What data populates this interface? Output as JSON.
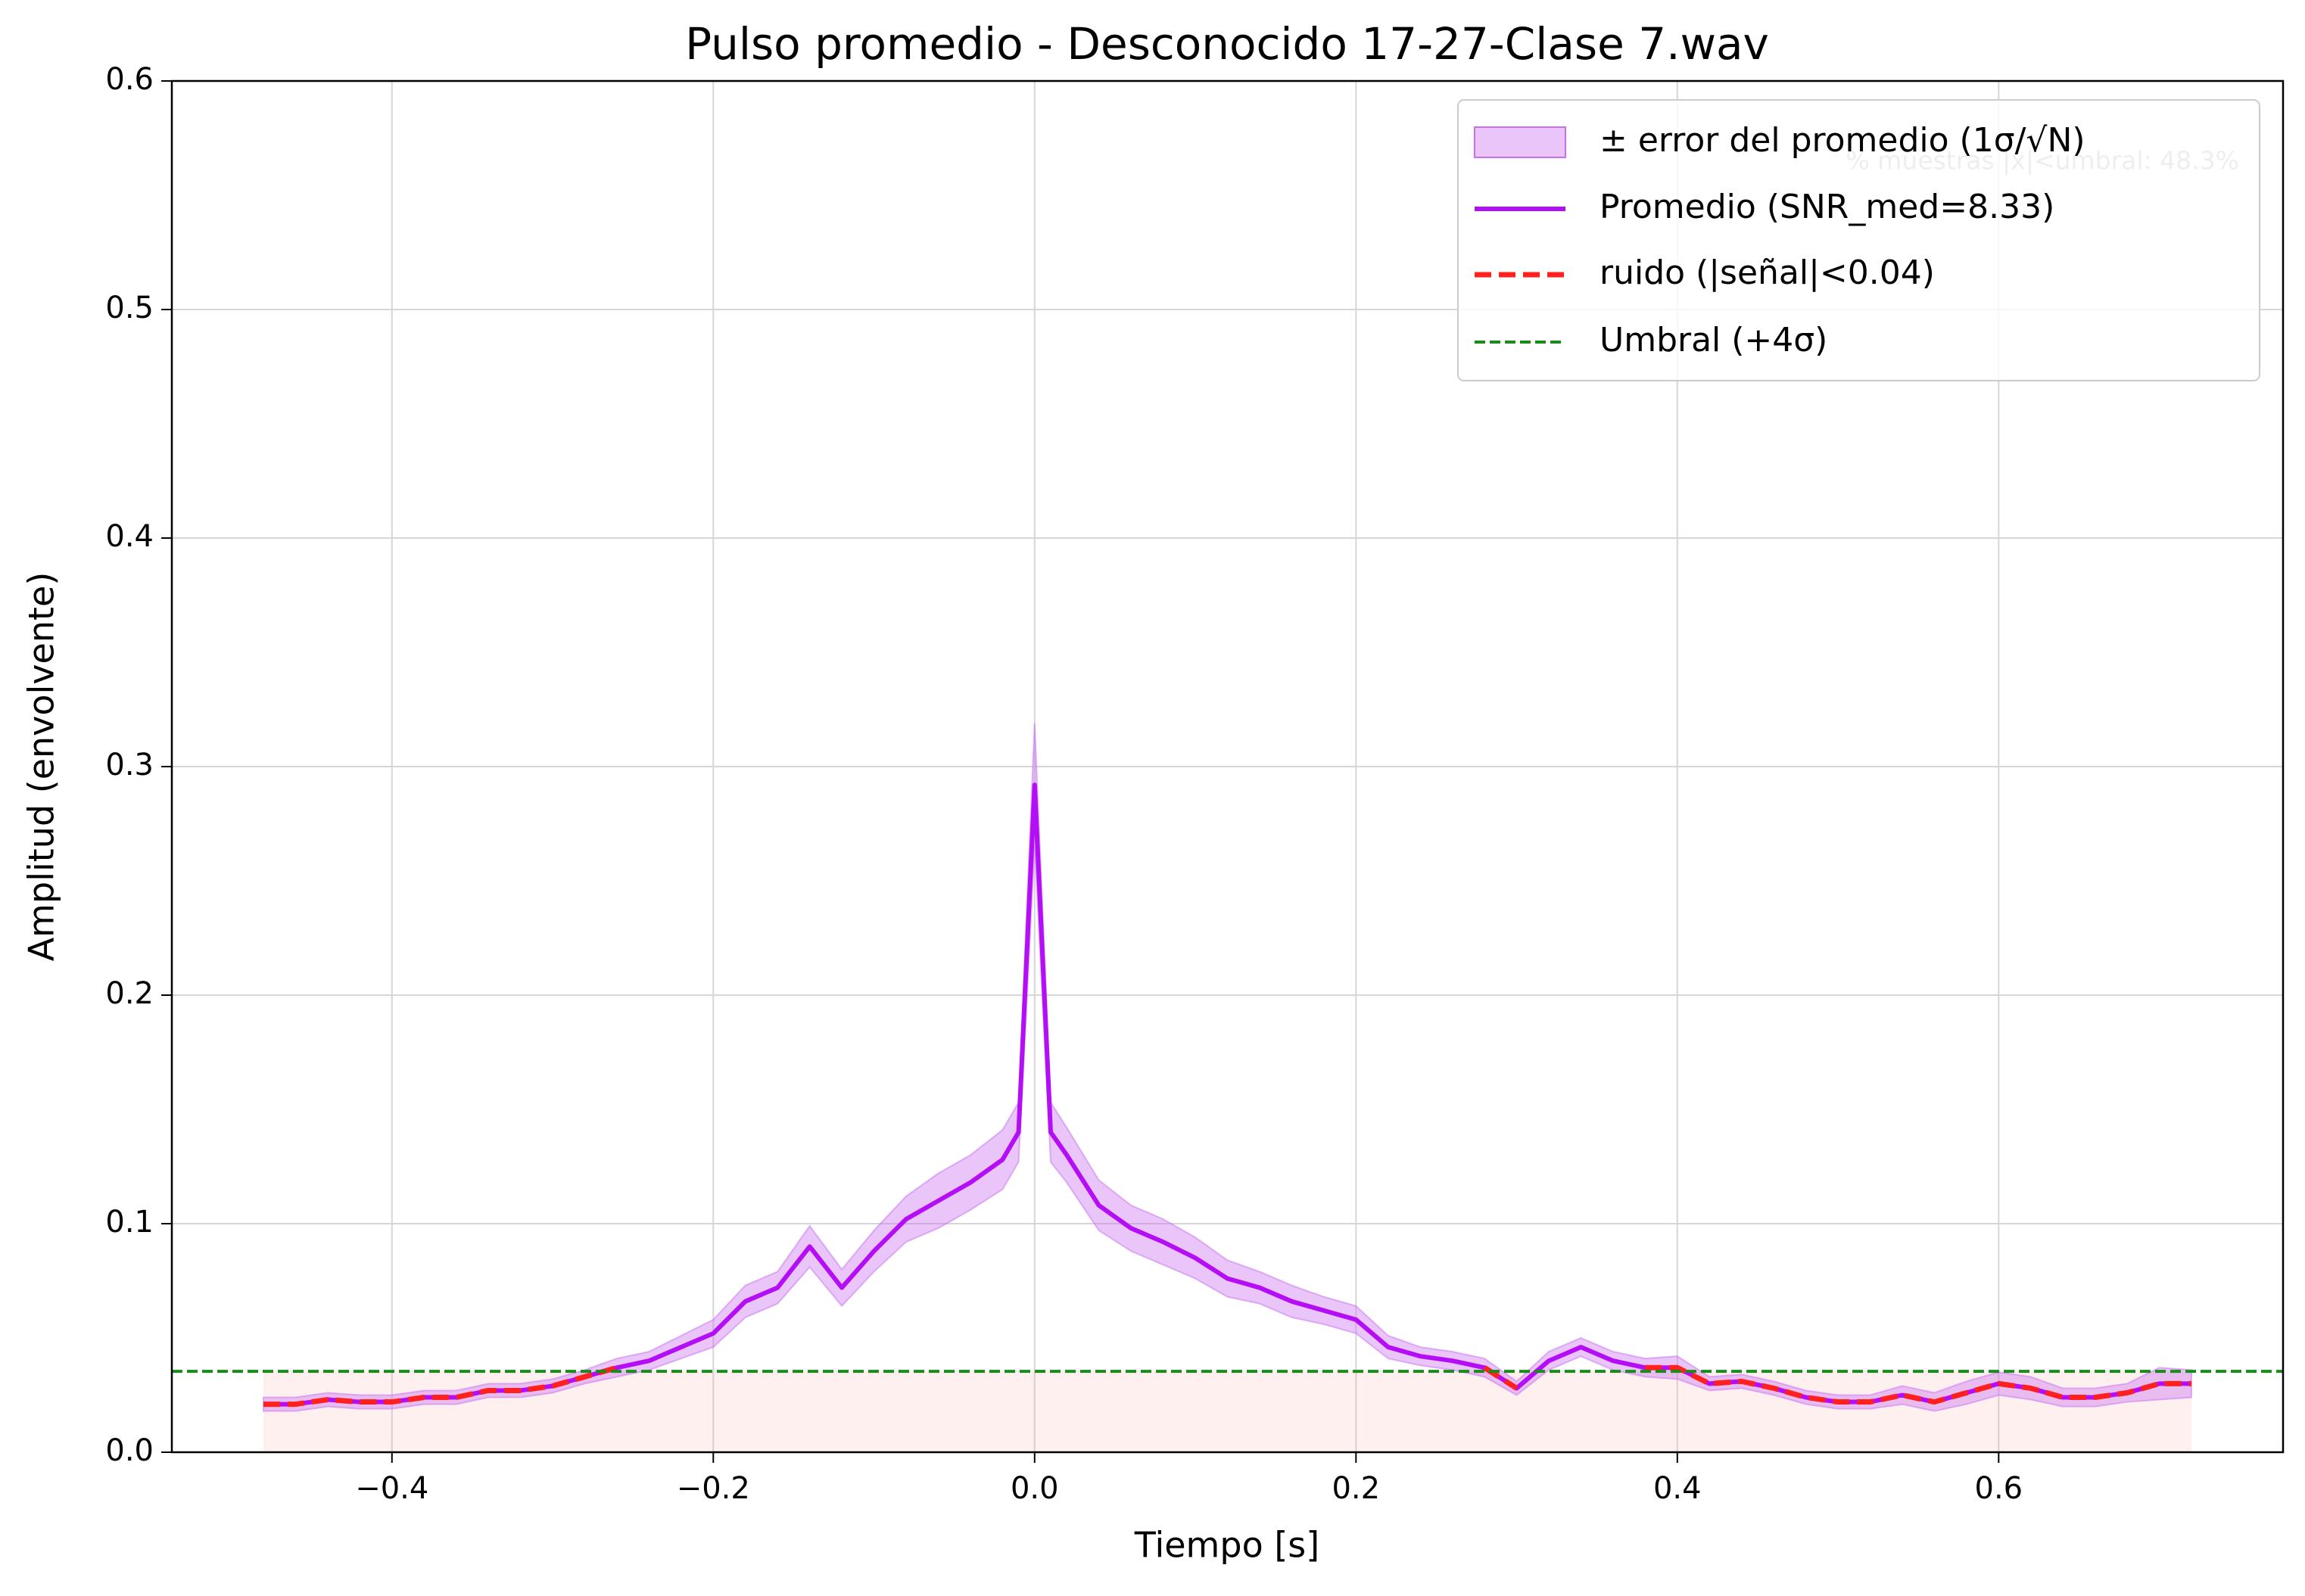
{
  "chart_data": {
    "type": "line",
    "title": "Pulso promedio - Desconocido 17-27-Clase 7.wav",
    "xlabel": "Tiempo [s]",
    "ylabel": "Amplitud (envolvente)",
    "annotation": "% muestras |x|<umbral: 48.3%",
    "xlim": [
      -0.537,
      0.777
    ],
    "ylim": [
      0,
      0.6
    ],
    "xticks": [
      {
        "value": -0.4,
        "label": "−0.4"
      },
      {
        "value": -0.2,
        "label": "−0.2"
      },
      {
        "value": 0,
        "label": "0.0"
      },
      0.2,
      0.4,
      0.6
    ],
    "yticks": [
      {
        "value": 0,
        "label": "0.0"
      },
      0.1,
      0.2,
      0.3,
      0.4,
      0.5,
      0.6
    ],
    "grid": true,
    "legend": "upper right",
    "x": [
      -0.48,
      -0.46,
      -0.44,
      -0.42,
      -0.4,
      -0.38,
      -0.36,
      -0.34,
      -0.32,
      -0.3,
      -0.28,
      -0.26,
      -0.24,
      -0.22,
      -0.2,
      -0.18,
      -0.16,
      -0.14,
      -0.12,
      -0.1,
      -0.08,
      -0.06,
      -0.04,
      -0.02,
      -0.01,
      0,
      0.01,
      0.02,
      0.04,
      0.06,
      0.08,
      0.1,
      0.12,
      0.14,
      0.16,
      0.18,
      0.2,
      0.22,
      0.24,
      0.26,
      0.28,
      0.3,
      0.32,
      0.34,
      0.36,
      0.38,
      0.4,
      0.42,
      0.44,
      0.46,
      0.48,
      0.5,
      0.52,
      0.54,
      0.56,
      0.58,
      0.6,
      0.62,
      0.64,
      0.66,
      0.68,
      0.7,
      0.72
    ],
    "band": {
      "name": "± error del promedio (1σ/√N)",
      "color": "#c86ff0",
      "errors": [
        0.003,
        0.003,
        0.003,
        0.003,
        0.003,
        0.003,
        0.003,
        0.003,
        0.003,
        0.003,
        0.003,
        0.004,
        0.004,
        0.005,
        0.006,
        0.007,
        0.007,
        0.009,
        0.008,
        0.009,
        0.01,
        0.012,
        0.012,
        0.013,
        0.013,
        0.027,
        0.013,
        0.012,
        0.011,
        0.01,
        0.01,
        0.009,
        0.008,
        0.007,
        0.007,
        0.006,
        0.006,
        0.005,
        0.004,
        0.004,
        0.004,
        0.003,
        0.004,
        0.004,
        0.004,
        0.004,
        0.005,
        0.003,
        0.003,
        0.003,
        0.003,
        0.003,
        0.003,
        0.004,
        0.004,
        0.005,
        0.005,
        0.005,
        0.004,
        0.004,
        0.004,
        0.007,
        0.006
      ]
    },
    "series": [
      {
        "name": "Promedio (SNR_med=8.33)",
        "color": "#b30ef5",
        "dashed": false,
        "values": [
          0.021,
          0.021,
          0.023,
          0.022,
          0.022,
          0.024,
          0.024,
          0.027,
          0.027,
          0.029,
          0.033,
          0.037,
          0.04,
          0.046,
          0.052,
          0.066,
          0.072,
          0.09,
          0.072,
          0.088,
          0.102,
          0.11,
          0.118,
          0.128,
          0.14,
          0.292,
          0.14,
          0.13,
          0.108,
          0.098,
          0.092,
          0.085,
          0.076,
          0.072,
          0.066,
          0.062,
          0.058,
          0.046,
          0.042,
          0.04,
          0.037,
          0.028,
          0.04,
          0.046,
          0.04,
          0.037,
          0.037,
          0.03,
          0.031,
          0.028,
          0.024,
          0.022,
          0.022,
          0.025,
          0.022,
          0.026,
          0.03,
          0.028,
          0.024,
          0.024,
          0.026,
          0.03,
          0.03
        ]
      },
      {
        "name": "ruido (|señal|<0.04)",
        "color": "#ff2020",
        "dashed": true,
        "values": [
          0.021,
          0.021,
          0.023,
          0.022,
          0.022,
          0.024,
          0.024,
          0.027,
          0.027,
          0.029,
          0.033,
          0.037,
          null,
          null,
          null,
          null,
          null,
          null,
          null,
          null,
          null,
          null,
          null,
          null,
          null,
          null,
          null,
          null,
          null,
          null,
          null,
          null,
          null,
          null,
          null,
          null,
          null,
          null,
          null,
          null,
          0.037,
          0.028,
          null,
          null,
          null,
          0.037,
          0.037,
          0.03,
          0.031,
          0.028,
          0.024,
          0.022,
          0.022,
          0.025,
          0.022,
          0.026,
          0.03,
          0.028,
          0.024,
          0.024,
          0.026,
          0.03,
          0.03
        ]
      }
    ],
    "threshold": {
      "name": "Umbral (+4σ)",
      "value": 0.0354,
      "color": "#1a8a1a"
    }
  }
}
